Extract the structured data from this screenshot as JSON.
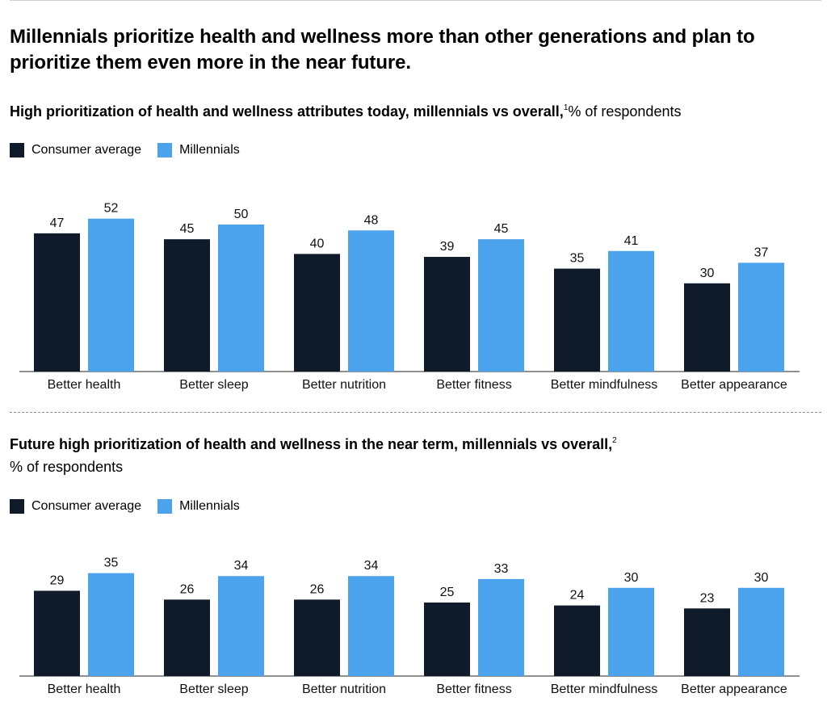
{
  "title": "Millennials prioritize health and wellness more than other generations and plan to prioritize them even more in the near future.",
  "colors": {
    "consumer_average": "#0f1b2b",
    "millennials": "#4aa3ec",
    "axis": "#222222"
  },
  "chart_data": [
    {
      "type": "bar",
      "title_bold": "High prioritization of health and wellness attributes today, millennials vs overall,",
      "footnote": "1",
      "title_rest": "% of respondents",
      "legend": [
        "Consumer average",
        "Millennials"
      ],
      "categories": [
        "Better health",
        "Better sleep",
        "Better nutrition",
        "Better fitness",
        "Better mindfulness",
        "Better appearance"
      ],
      "series": [
        {
          "name": "Consumer average",
          "values": [
            47,
            45,
            40,
            39,
            35,
            30
          ]
        },
        {
          "name": "Millennials",
          "values": [
            52,
            50,
            48,
            45,
            41,
            37
          ]
        }
      ],
      "xlabel": "",
      "ylabel": "% of respondents",
      "ylim": [
        0,
        60
      ]
    },
    {
      "type": "bar",
      "title_bold": "Future high prioritization of health and wellness in the near term, millennials vs overall,",
      "footnote": "2",
      "title_rest": "% of respondents",
      "legend": [
        "Consumer average",
        "Millennials"
      ],
      "categories": [
        "Better health",
        "Better sleep",
        "Better nutrition",
        "Better fitness",
        "Better mindfulness",
        "Better appearance"
      ],
      "series": [
        {
          "name": "Consumer average",
          "values": [
            29,
            26,
            26,
            25,
            24,
            23
          ]
        },
        {
          "name": "Millennials",
          "values": [
            35,
            34,
            34,
            33,
            30,
            30
          ]
        }
      ],
      "xlabel": "",
      "ylabel": "% of respondents",
      "ylim": [
        0,
        60
      ]
    }
  ]
}
